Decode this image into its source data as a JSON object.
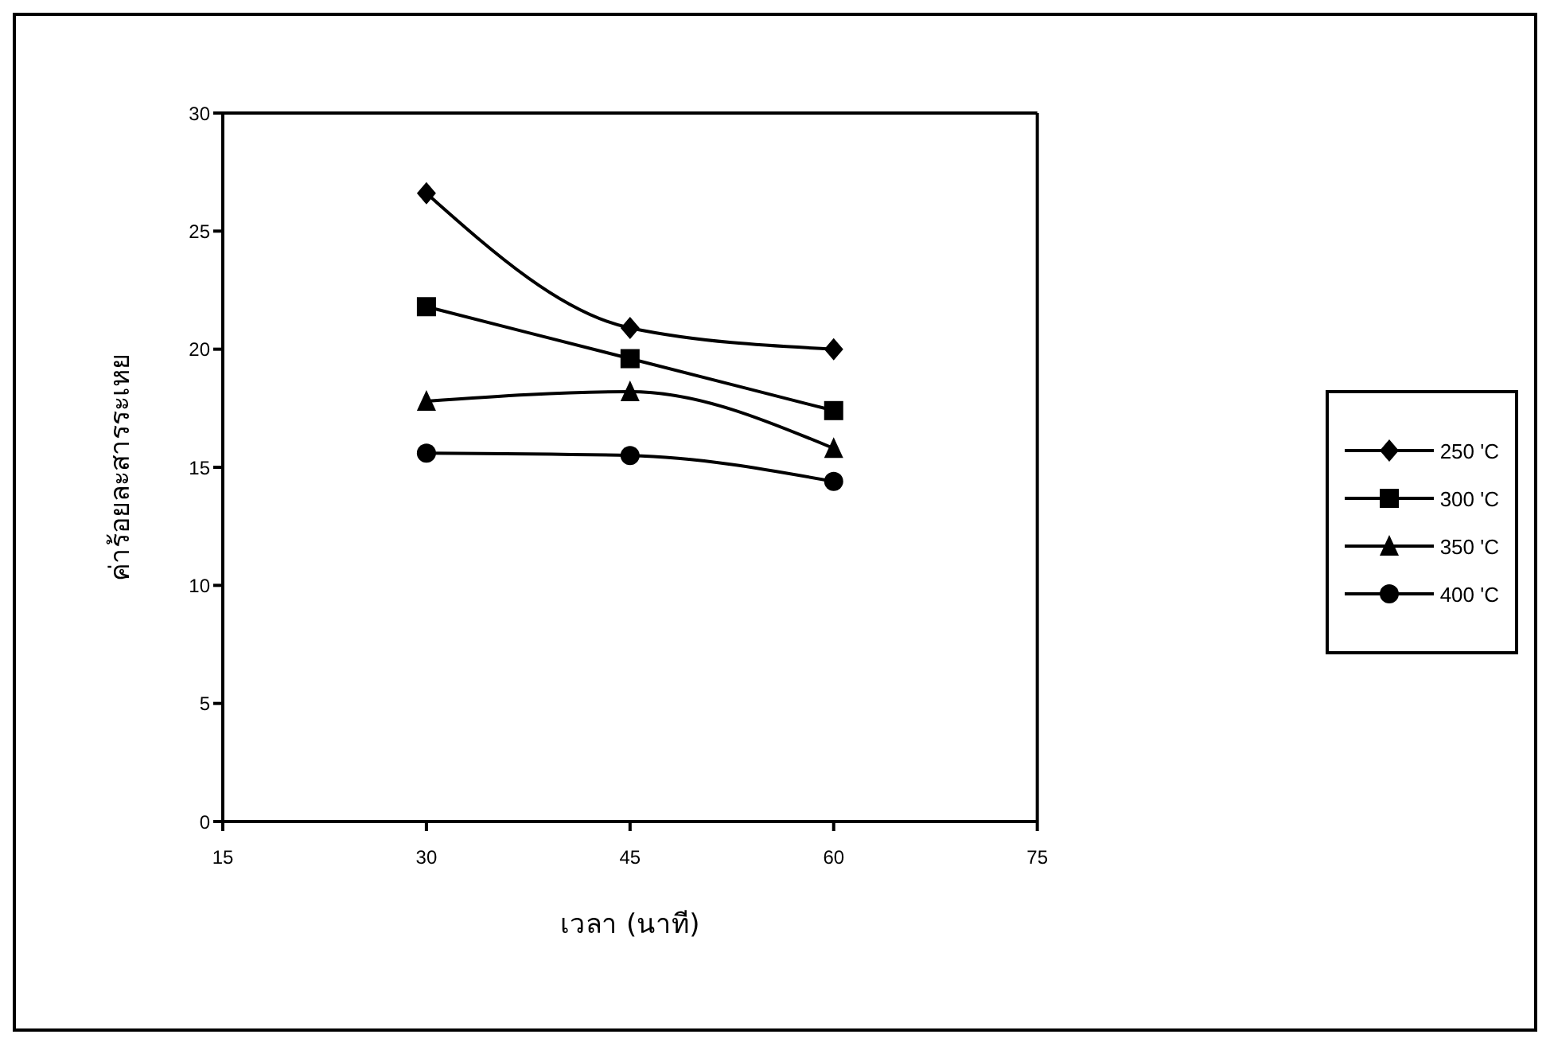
{
  "chart_data": {
    "type": "line",
    "xlabel": "เวลา (นาที)",
    "ylabel": "ค่าร้อยละสารระเหย",
    "x": [
      30,
      45,
      60
    ],
    "series": [
      {
        "name": "250 'C",
        "color": "#000000",
        "marker": "diamond",
        "values": [
          26.6,
          20.9,
          20.0
        ]
      },
      {
        "name": "300 'C",
        "color": "#000000",
        "marker": "square",
        "values": [
          21.8,
          19.6,
          17.4
        ]
      },
      {
        "name": "350 'C",
        "color": "#000000",
        "marker": "triangle",
        "values": [
          17.8,
          18.2,
          15.8
        ]
      },
      {
        "name": "400 'C",
        "color": "#000000",
        "marker": "circle",
        "values": [
          15.6,
          15.5,
          14.4
        ]
      }
    ],
    "xlim": [
      15,
      75
    ],
    "xticks": [
      15,
      30,
      45,
      60,
      75
    ],
    "ylim": [
      0,
      30
    ],
    "yticks": [
      0,
      5,
      10,
      15,
      20,
      25,
      30
    ],
    "grid": false,
    "legend": "right",
    "line_style": "solid"
  }
}
